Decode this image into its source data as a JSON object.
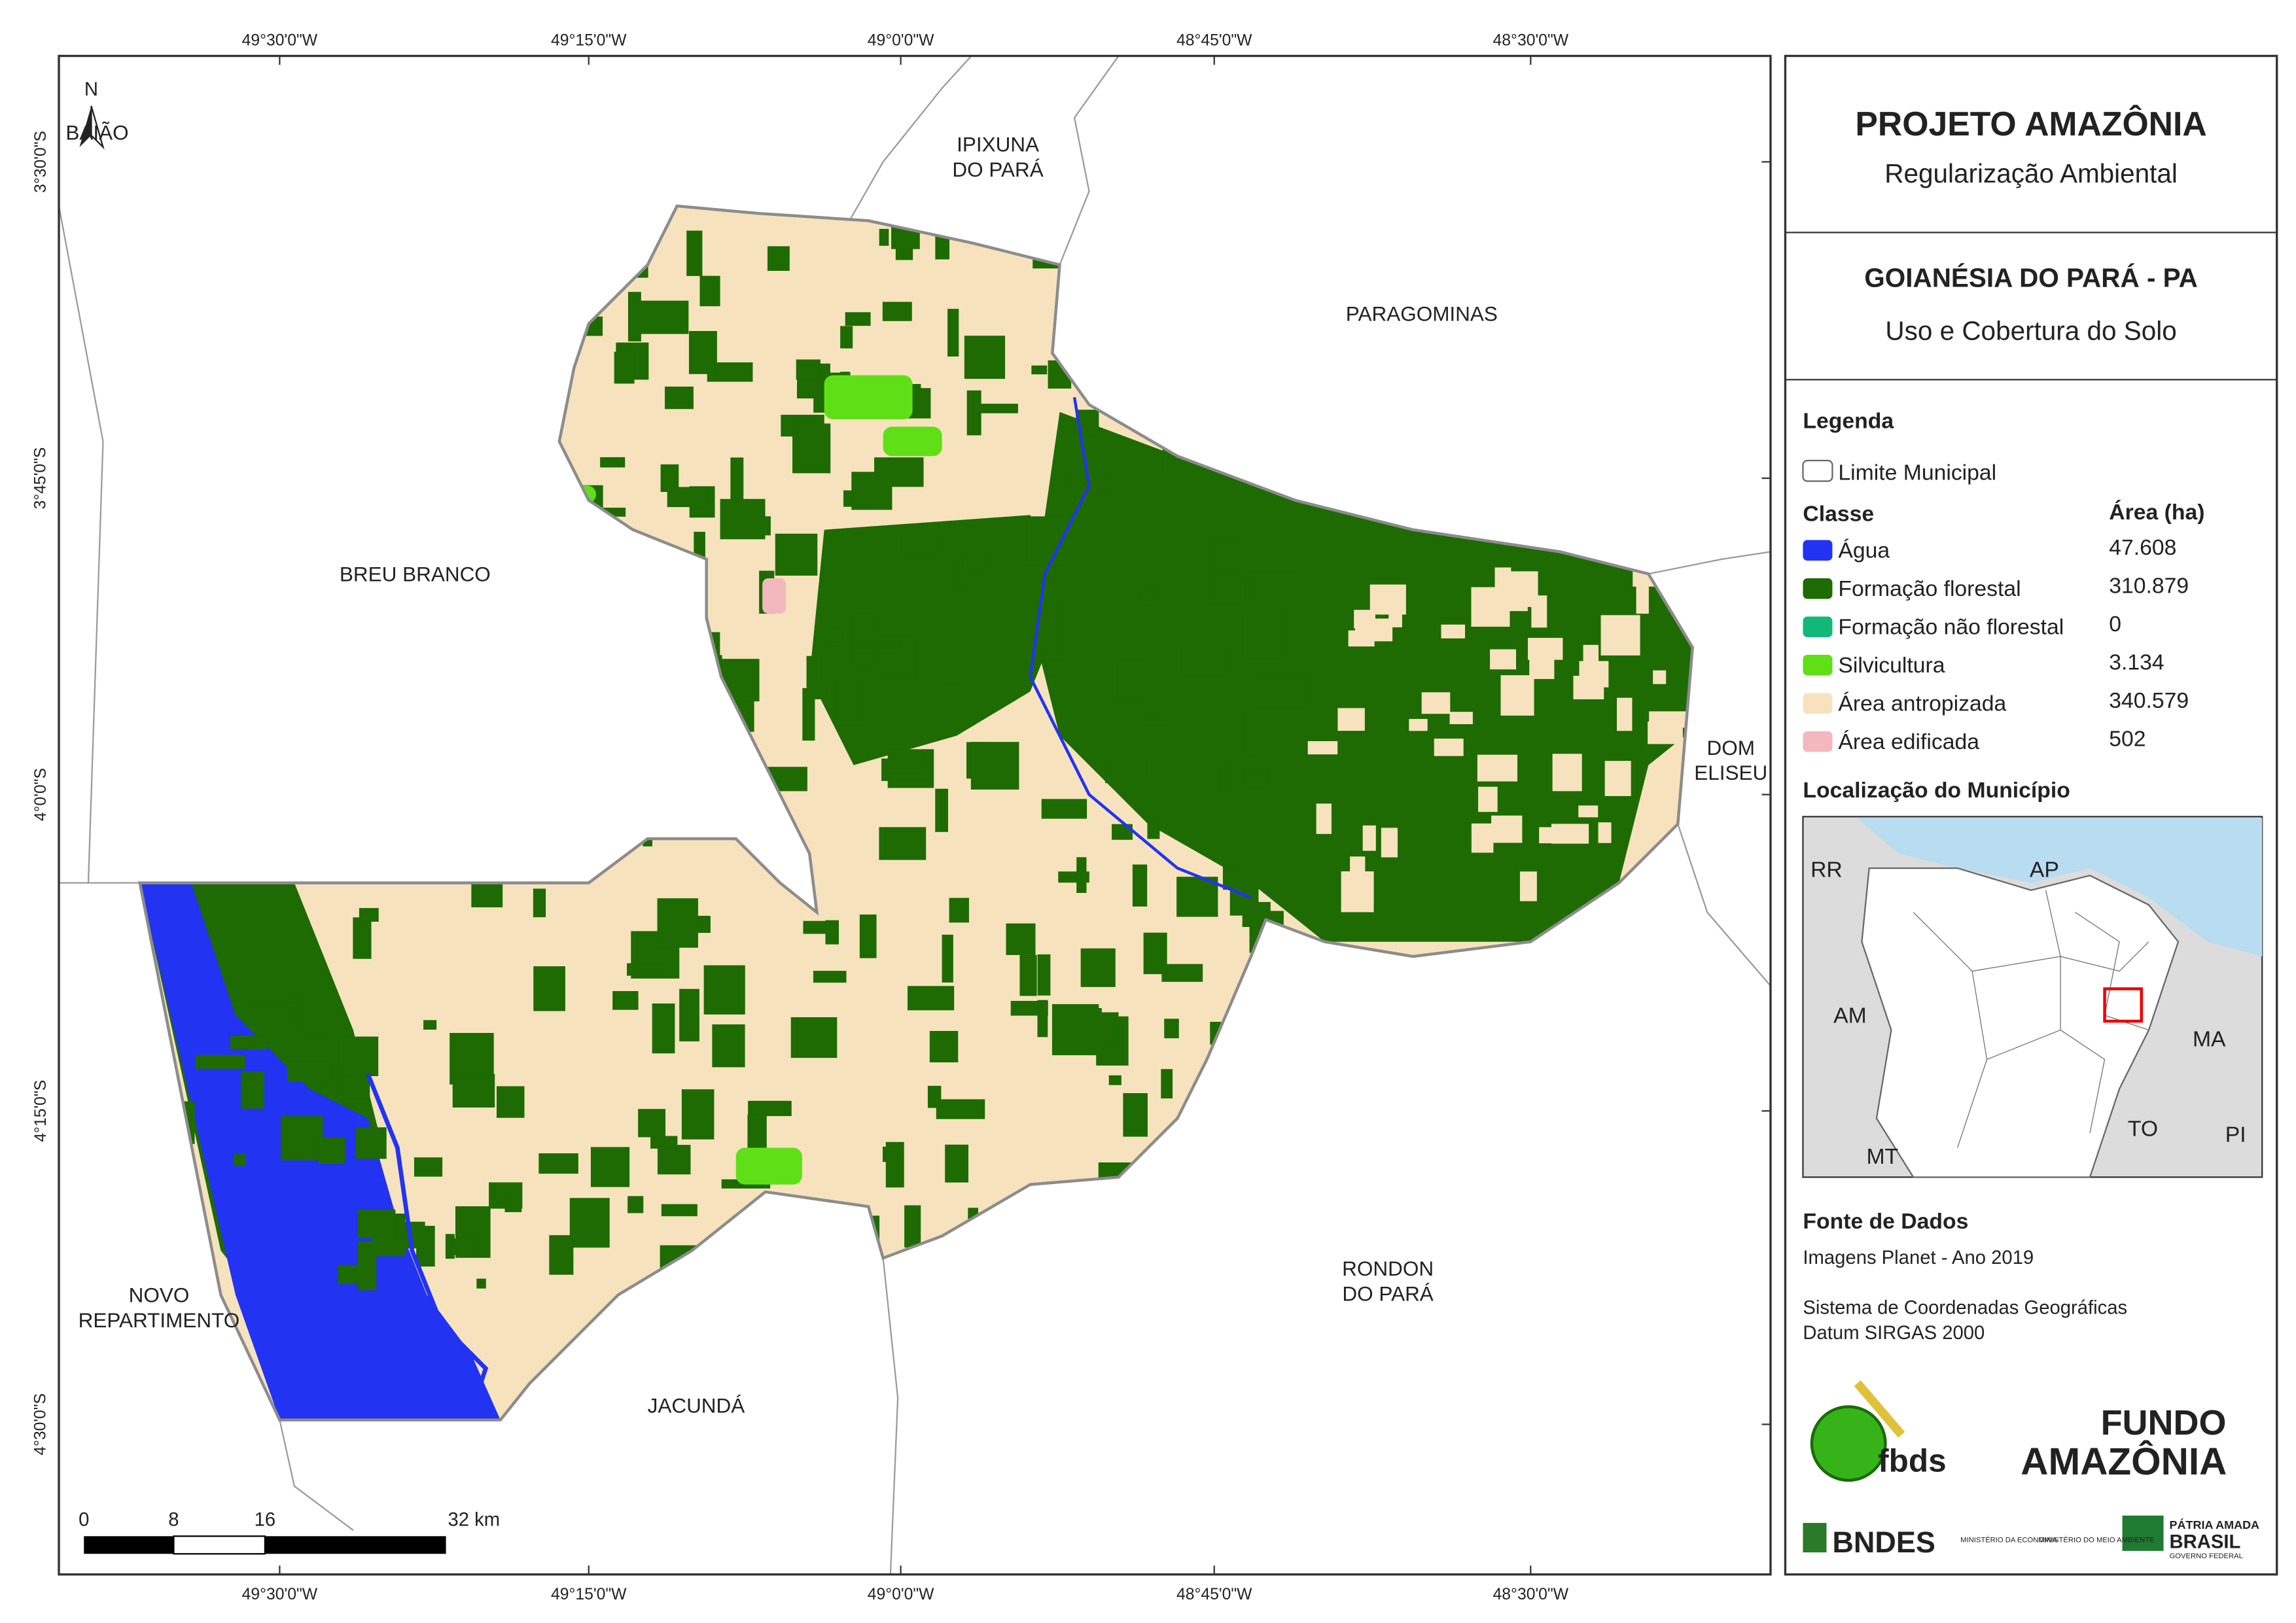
{
  "map": {
    "north": "N",
    "top_ticks": [
      "49°30'0\"W",
      "49°15'0\"W",
      "49°0'0\"W",
      "48°45'0\"W",
      "48°30'0\"W"
    ],
    "bottom_ticks": [
      "49°30'0\"W",
      "49°15'0\"W",
      "49°0'0\"W",
      "48°45'0\"W",
      "48°30'0\"W"
    ],
    "left_ticks": [
      "3°30'0\"S",
      "3°45'0\"S",
      "4°0'0\"S",
      "4°15'0\"S",
      "4°30'0\"S"
    ],
    "places": [
      [
        "BAIÃO"
      ],
      [
        "IPIXUNA",
        "DO PARÁ"
      ],
      [
        "PARAGOMINAS"
      ],
      [
        "BREU BRANCO"
      ],
      [
        "DOM",
        "ELISEU"
      ],
      [
        "NOVO",
        "REPARTIMENTO"
      ],
      [
        "JACUNDÁ"
      ],
      [
        "RONDON",
        "DO PARÁ"
      ]
    ],
    "scale_labels": [
      "0",
      "8",
      "16",
      "32 km"
    ]
  },
  "header": {
    "title": "PROJETO AMAZÔNIA",
    "subtitle": "Regularização Ambiental",
    "municipality": "GOIANÉSIA DO PARÁ - PA",
    "theme": "Uso e Cobertura do Solo"
  },
  "legend": {
    "title": "Legenda",
    "boundary": "Limite Municipal",
    "class_header": "Classe",
    "area_header": "Área (ha)",
    "classes": [
      {
        "name": "Água",
        "area": "47.608",
        "color": "#2233f2"
      },
      {
        "name": "Formação florestal",
        "area": "310.879",
        "color": "#1d6b02"
      },
      {
        "name": "Formação não florestal",
        "area": "0",
        "color": "#12b877"
      },
      {
        "name": "Silvicultura",
        "area": "3.134",
        "color": "#5fe016"
      },
      {
        "name": "Área antropizada",
        "area": "340.579",
        "color": "#f6e3bd"
      },
      {
        "name": "Área edificada",
        "area": "502",
        "color": "#f3b8bd"
      }
    ]
  },
  "location": {
    "title": "Localização do Município",
    "states": [
      "RR",
      "AP",
      "AM",
      "MA",
      "TO",
      "MT",
      "PI"
    ]
  },
  "sources": {
    "title": "Fonte de Dados",
    "lines": [
      "Imagens Planet - Ano 2019",
      "Sistema de Coordenadas Geográficas",
      "Datum SIRGAS 2000"
    ]
  },
  "logos": {
    "fbds": "fbds",
    "fundo": [
      "FUNDO",
      "AMAZÔNIA"
    ],
    "bndes": "BNDES",
    "ministries": [
      "MINISTÉRIO DA ECONOMIA",
      "MINISTÉRIO DO MEIO AMBIENTE"
    ],
    "government": [
      "PÁTRIA AMADA",
      "BRASIL",
      "GOVERNO FEDERAL"
    ]
  }
}
